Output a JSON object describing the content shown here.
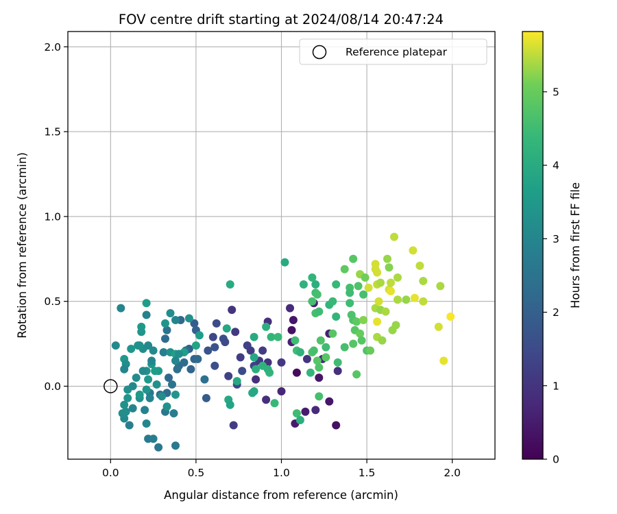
{
  "chart_data": {
    "type": "scatter",
    "title": "FOV centre drift starting at 2024/08/14 20:47:24",
    "xlabel": "Angular distance from reference (arcmin)",
    "ylabel": "Rotation from reference (arcmin)",
    "colorbar_label": "Hours from first FF file",
    "xlim": [
      -0.25,
      2.25
    ],
    "ylim": [
      -0.43,
      2.09
    ],
    "clim": [
      0,
      5.82
    ],
    "xticks": [
      0.0,
      0.5,
      1.0,
      1.5,
      2.0
    ],
    "xtick_labels": [
      "0.0",
      "0.5",
      "1.0",
      "1.5",
      "2.0"
    ],
    "yticks": [
      0.0,
      0.5,
      1.0,
      1.5,
      2.0
    ],
    "ytick_labels": [
      "0.0",
      "0.5",
      "1.0",
      "1.5",
      "2.0"
    ],
    "cticks": [
      0,
      1,
      2,
      3,
      4,
      5
    ],
    "ctick_labels": [
      "0",
      "1",
      "2",
      "3",
      "4",
      "5"
    ],
    "grid": true,
    "legend": {
      "placement": "top-right",
      "label": "Reference platepar"
    },
    "colormap": "viridis",
    "reference_point": {
      "x": 0.0,
      "y": 0.0
    },
    "points": [
      {
        "x": 1.32,
        "y": -0.23,
        "h": 0.3
      },
      {
        "x": 1.08,
        "y": -0.22,
        "h": 0.5
      },
      {
        "x": 1.22,
        "y": 0.05,
        "h": 0.4
      },
      {
        "x": 1.28,
        "y": 0.31,
        "h": 0.6
      },
      {
        "x": 1.24,
        "y": 0.16,
        "h": 0.7
      },
      {
        "x": 1.05,
        "y": 0.46,
        "h": 0.8
      },
      {
        "x": 1.07,
        "y": 0.39,
        "h": 0.4
      },
      {
        "x": 1.09,
        "y": 0.08,
        "h": 0.2
      },
      {
        "x": 0.91,
        "y": -0.08,
        "h": 0.9
      },
      {
        "x": 1.0,
        "y": -0.03,
        "h": 0.7
      },
      {
        "x": 1.14,
        "y": -0.15,
        "h": 0.5
      },
      {
        "x": 1.2,
        "y": -0.14,
        "h": 0.8
      },
      {
        "x": 1.28,
        "y": -0.09,
        "h": 0.4
      },
      {
        "x": 1.33,
        "y": 0.09,
        "h": 0.9
      },
      {
        "x": 1.06,
        "y": 0.33,
        "h": 0.3
      },
      {
        "x": 1.06,
        "y": 0.26,
        "h": 0.6
      },
      {
        "x": 0.92,
        "y": 0.38,
        "h": 0.9
      },
      {
        "x": 1.15,
        "y": 0.16,
        "h": 1.0
      },
      {
        "x": 1.19,
        "y": 0.49,
        "h": 0.6
      },
      {
        "x": 1.0,
        "y": 0.14,
        "h": 1.1
      },
      {
        "x": 0.89,
        "y": 0.21,
        "h": 1.2
      },
      {
        "x": 0.92,
        "y": 0.14,
        "h": 1.0
      },
      {
        "x": 0.84,
        "y": 0.12,
        "h": 1.3
      },
      {
        "x": 0.85,
        "y": 0.04,
        "h": 0.9
      },
      {
        "x": 0.74,
        "y": 0.01,
        "h": 1.4
      },
      {
        "x": 0.76,
        "y": 0.17,
        "h": 1.2
      },
      {
        "x": 0.73,
        "y": 0.32,
        "h": 1.1
      },
      {
        "x": 0.71,
        "y": 0.45,
        "h": 1.0
      },
      {
        "x": 0.8,
        "y": 0.24,
        "h": 1.3
      },
      {
        "x": 0.82,
        "y": 0.21,
        "h": 1.2
      },
      {
        "x": 0.87,
        "y": 0.15,
        "h": 1.1
      },
      {
        "x": 0.72,
        "y": -0.23,
        "h": 1.2
      },
      {
        "x": 0.69,
        "y": 0.06,
        "h": 1.3
      },
      {
        "x": 0.77,
        "y": 0.09,
        "h": 1.5
      },
      {
        "x": 0.6,
        "y": 0.29,
        "h": 1.4
      },
      {
        "x": 0.62,
        "y": 0.37,
        "h": 1.5
      },
      {
        "x": 0.66,
        "y": 0.28,
        "h": 1.6
      },
      {
        "x": 0.67,
        "y": 0.26,
        "h": 1.5
      },
      {
        "x": 0.61,
        "y": 0.23,
        "h": 1.7
      },
      {
        "x": 0.57,
        "y": 0.21,
        "h": 1.7
      },
      {
        "x": 0.61,
        "y": 0.12,
        "h": 1.6
      },
      {
        "x": 0.56,
        "y": -0.07,
        "h": 1.9
      },
      {
        "x": 0.49,
        "y": 0.37,
        "h": 1.9
      },
      {
        "x": 0.5,
        "y": 0.33,
        "h": 2.0
      },
      {
        "x": 0.46,
        "y": 0.22,
        "h": 2.0
      },
      {
        "x": 0.49,
        "y": 0.16,
        "h": 2.1
      },
      {
        "x": 0.51,
        "y": 0.16,
        "h": 2.2
      },
      {
        "x": 0.43,
        "y": 0.14,
        "h": 2.3
      },
      {
        "x": 0.4,
        "y": 0.12,
        "h": 2.3
      },
      {
        "x": 0.39,
        "y": 0.1,
        "h": 2.4
      },
      {
        "x": 0.34,
        "y": 0.05,
        "h": 2.2
      },
      {
        "x": 0.36,
        "y": 0.01,
        "h": 2.5
      },
      {
        "x": 0.29,
        "y": -0.05,
        "h": 2.4
      },
      {
        "x": 0.33,
        "y": -0.04,
        "h": 2.3
      },
      {
        "x": 0.23,
        "y": -0.04,
        "h": 2.6
      },
      {
        "x": 0.47,
        "y": 0.1,
        "h": 2.1
      },
      {
        "x": 0.44,
        "y": 0.21,
        "h": 2.4
      },
      {
        "x": 0.55,
        "y": 0.04,
        "h": 2.4
      },
      {
        "x": 0.41,
        "y": 0.39,
        "h": 2.2
      },
      {
        "x": 0.32,
        "y": 0.28,
        "h": 2.3
      },
      {
        "x": 0.33,
        "y": 0.33,
        "h": 2.5
      },
      {
        "x": 0.32,
        "y": -0.15,
        "h": 2.6
      },
      {
        "x": 0.22,
        "y": -0.31,
        "h": 2.7
      },
      {
        "x": 0.25,
        "y": -0.31,
        "h": 2.8
      },
      {
        "x": 0.28,
        "y": -0.36,
        "h": 2.6
      },
      {
        "x": 0.38,
        "y": -0.35,
        "h": 2.7
      },
      {
        "x": 0.37,
        "y": -0.16,
        "h": 2.8
      },
      {
        "x": 0.21,
        "y": -0.22,
        "h": 3.0
      },
      {
        "x": 0.2,
        "y": -0.14,
        "h": 2.9
      },
      {
        "x": 0.13,
        "y": -0.13,
        "h": 3.0
      },
      {
        "x": 0.08,
        "y": -0.19,
        "h": 3.1
      },
      {
        "x": 0.09,
        "y": -0.15,
        "h": 3.2
      },
      {
        "x": 0.11,
        "y": -0.23,
        "h": 2.8
      },
      {
        "x": 0.07,
        "y": -0.16,
        "h": 3.2
      },
      {
        "x": 0.08,
        "y": -0.11,
        "h": 3.3
      },
      {
        "x": 0.1,
        "y": -0.07,
        "h": 3.4
      },
      {
        "x": 0.17,
        "y": -0.07,
        "h": 3.3
      },
      {
        "x": 0.17,
        "y": -0.05,
        "h": 3.5
      },
      {
        "x": 0.21,
        "y": -0.02,
        "h": 3.4
      },
      {
        "x": 0.23,
        "y": -0.07,
        "h": 2.9
      },
      {
        "x": 0.27,
        "y": 0.01,
        "h": 3.3
      },
      {
        "x": 0.3,
        "y": -0.06,
        "h": 3.2
      },
      {
        "x": 0.38,
        "y": -0.05,
        "h": 3.4
      },
      {
        "x": 0.33,
        "y": -0.12,
        "h": 3.3
      },
      {
        "x": 0.28,
        "y": 0.09,
        "h": 3.5
      },
      {
        "x": 0.26,
        "y": 0.09,
        "h": 3.6
      },
      {
        "x": 0.21,
        "y": 0.09,
        "h": 3.3
      },
      {
        "x": 0.19,
        "y": 0.09,
        "h": 3.1
      },
      {
        "x": 0.22,
        "y": 0.04,
        "h": 3.5
      },
      {
        "x": 0.24,
        "y": 0.13,
        "h": 3.4
      },
      {
        "x": 0.24,
        "y": 0.15,
        "h": 3.0
      },
      {
        "x": 0.15,
        "y": 0.05,
        "h": 3.2
      },
      {
        "x": 0.19,
        "y": 0.22,
        "h": 3.2
      },
      {
        "x": 0.17,
        "y": 0.24,
        "h": 3.3
      },
      {
        "x": 0.18,
        "y": 0.32,
        "h": 3.4
      },
      {
        "x": 0.21,
        "y": 0.42,
        "h": 2.9
      },
      {
        "x": 0.21,
        "y": 0.49,
        "h": 3.6
      },
      {
        "x": 0.18,
        "y": 0.35,
        "h": 3.5
      },
      {
        "x": 0.16,
        "y": 0.24,
        "h": 3.3
      },
      {
        "x": 0.22,
        "y": 0.24,
        "h": 3.1
      },
      {
        "x": 0.12,
        "y": 0.22,
        "h": 3.4
      },
      {
        "x": 0.08,
        "y": 0.16,
        "h": 3.5
      },
      {
        "x": 0.09,
        "y": 0.13,
        "h": 3.2
      },
      {
        "x": 0.08,
        "y": 0.1,
        "h": 3.0
      },
      {
        "x": 0.03,
        "y": 0.24,
        "h": 3.1
      },
      {
        "x": 0.06,
        "y": 0.46,
        "h": 3.0
      },
      {
        "x": 0.1,
        "y": -0.02,
        "h": 3.3
      },
      {
        "x": 0.13,
        "y": 0.0,
        "h": 3.1
      },
      {
        "x": 0.31,
        "y": 0.2,
        "h": 2.8
      },
      {
        "x": 0.35,
        "y": 0.2,
        "h": 3.3
      },
      {
        "x": 0.25,
        "y": 0.21,
        "h": 3.1
      },
      {
        "x": 0.35,
        "y": 0.43,
        "h": 3.2
      },
      {
        "x": 0.32,
        "y": 0.37,
        "h": 3.4
      },
      {
        "x": 0.38,
        "y": 0.39,
        "h": 3.0
      },
      {
        "x": 0.46,
        "y": 0.4,
        "h": 3.3
      },
      {
        "x": 0.43,
        "y": 0.2,
        "h": 3.7
      },
      {
        "x": 0.38,
        "y": 0.19,
        "h": 3.7
      },
      {
        "x": 0.4,
        "y": 0.19,
        "h": 3.2
      },
      {
        "x": 0.5,
        "y": 0.24,
        "h": 3.8
      },
      {
        "x": 0.38,
        "y": 0.15,
        "h": 3.0
      },
      {
        "x": 0.52,
        "y": 0.3,
        "h": 3.6
      },
      {
        "x": 0.7,
        "y": 0.6,
        "h": 4.0
      },
      {
        "x": 0.68,
        "y": 0.34,
        "h": 3.9
      },
      {
        "x": 0.69,
        "y": -0.08,
        "h": 3.9
      },
      {
        "x": 0.7,
        "y": -0.11,
        "h": 3.8
      },
      {
        "x": 0.74,
        "y": 0.03,
        "h": 3.9
      },
      {
        "x": 0.83,
        "y": -0.04,
        "h": 4.0
      },
      {
        "x": 0.84,
        "y": -0.03,
        "h": 3.9
      },
      {
        "x": 0.84,
        "y": 0.29,
        "h": 4.0
      },
      {
        "x": 0.84,
        "y": 0.17,
        "h": 3.9
      },
      {
        "x": 0.85,
        "y": 0.1,
        "h": 4.1
      },
      {
        "x": 0.89,
        "y": 0.12,
        "h": 4.2
      },
      {
        "x": 0.93,
        "y": 0.08,
        "h": 4.3
      },
      {
        "x": 0.92,
        "y": 0.1,
        "h": 4.2
      },
      {
        "x": 0.91,
        "y": 0.35,
        "h": 4.1
      },
      {
        "x": 0.94,
        "y": 0.29,
        "h": 4.3
      },
      {
        "x": 0.98,
        "y": 0.29,
        "h": 4.4
      },
      {
        "x": 0.96,
        "y": -0.1,
        "h": 4.4
      },
      {
        "x": 1.02,
        "y": 0.73,
        "h": 4.0
      },
      {
        "x": 1.08,
        "y": 0.27,
        "h": 4.5
      },
      {
        "x": 1.09,
        "y": 0.21,
        "h": 4.5
      },
      {
        "x": 1.11,
        "y": 0.2,
        "h": 4.2
      },
      {
        "x": 1.09,
        "y": -0.16,
        "h": 4.5
      },
      {
        "x": 1.11,
        "y": -0.2,
        "h": 4.1
      },
      {
        "x": 1.13,
        "y": 0.6,
        "h": 4.2
      },
      {
        "x": 1.18,
        "y": 0.64,
        "h": 4.3
      },
      {
        "x": 1.2,
        "y": 0.6,
        "h": 4.1
      },
      {
        "x": 1.2,
        "y": 0.55,
        "h": 4.5
      },
      {
        "x": 1.21,
        "y": 0.54,
        "h": 4.6
      },
      {
        "x": 1.18,
        "y": 0.5,
        "h": 4.6
      },
      {
        "x": 1.2,
        "y": 0.43,
        "h": 4.6
      },
      {
        "x": 1.22,
        "y": 0.44,
        "h": 4.5
      },
      {
        "x": 1.17,
        "y": 0.08,
        "h": 4.3
      },
      {
        "x": 1.18,
        "y": 0.2,
        "h": 4.7
      },
      {
        "x": 1.19,
        "y": 0.21,
        "h": 4.6
      },
      {
        "x": 1.21,
        "y": 0.15,
        "h": 4.8
      },
      {
        "x": 1.22,
        "y": 0.11,
        "h": 4.7
      },
      {
        "x": 1.22,
        "y": -0.06,
        "h": 4.6
      },
      {
        "x": 1.23,
        "y": 0.27,
        "h": 4.7
      },
      {
        "x": 1.26,
        "y": 0.23,
        "h": 4.5
      },
      {
        "x": 1.26,
        "y": 0.17,
        "h": 4.8
      },
      {
        "x": 1.28,
        "y": 0.48,
        "h": 4.3
      },
      {
        "x": 1.3,
        "y": 0.31,
        "h": 4.8
      },
      {
        "x": 1.3,
        "y": 0.5,
        "h": 4.4
      },
      {
        "x": 1.32,
        "y": 0.6,
        "h": 4.4
      },
      {
        "x": 1.32,
        "y": 0.41,
        "h": 4.3
      },
      {
        "x": 1.33,
        "y": 0.14,
        "h": 4.5
      },
      {
        "x": 1.37,
        "y": 0.69,
        "h": 4.9
      },
      {
        "x": 1.37,
        "y": 0.23,
        "h": 4.6
      },
      {
        "x": 1.4,
        "y": 0.58,
        "h": 4.6
      },
      {
        "x": 1.4,
        "y": 0.55,
        "h": 4.5
      },
      {
        "x": 1.4,
        "y": 0.49,
        "h": 4.5
      },
      {
        "x": 1.41,
        "y": 0.42,
        "h": 4.7
      },
      {
        "x": 1.42,
        "y": 0.39,
        "h": 4.7
      },
      {
        "x": 1.42,
        "y": 0.75,
        "h": 4.8
      },
      {
        "x": 1.42,
        "y": 0.25,
        "h": 4.8
      },
      {
        "x": 1.43,
        "y": 0.33,
        "h": 4.8
      },
      {
        "x": 1.44,
        "y": 0.07,
        "h": 4.8
      },
      {
        "x": 1.44,
        "y": 0.38,
        "h": 4.9
      },
      {
        "x": 1.45,
        "y": 0.59,
        "h": 4.7
      },
      {
        "x": 1.46,
        "y": 0.66,
        "h": 5.3
      },
      {
        "x": 1.46,
        "y": 0.31,
        "h": 5.0
      },
      {
        "x": 1.47,
        "y": 0.27,
        "h": 4.8
      },
      {
        "x": 1.48,
        "y": 0.54,
        "h": 4.6
      },
      {
        "x": 1.48,
        "y": 0.39,
        "h": 5.2
      },
      {
        "x": 1.49,
        "y": 0.64,
        "h": 5.1
      },
      {
        "x": 1.5,
        "y": 0.21,
        "h": 4.7
      },
      {
        "x": 1.51,
        "y": 0.58,
        "h": 5.6
      },
      {
        "x": 1.52,
        "y": 0.21,
        "h": 5.0
      },
      {
        "x": 1.55,
        "y": 0.46,
        "h": 5.4
      },
      {
        "x": 1.55,
        "y": 0.69,
        "h": 5.6
      },
      {
        "x": 1.55,
        "y": 0.72,
        "h": 5.6
      },
      {
        "x": 1.56,
        "y": 0.6,
        "h": 5.5
      },
      {
        "x": 1.56,
        "y": 0.67,
        "h": 5.6
      },
      {
        "x": 1.56,
        "y": 0.38,
        "h": 5.7
      },
      {
        "x": 1.56,
        "y": 0.29,
        "h": 5.4
      },
      {
        "x": 1.57,
        "y": 0.5,
        "h": 5.6
      },
      {
        "x": 1.58,
        "y": 0.45,
        "h": 5.3
      },
      {
        "x": 1.58,
        "y": 0.61,
        "h": 5.4
      },
      {
        "x": 1.59,
        "y": 0.27,
        "h": 5.3
      },
      {
        "x": 1.61,
        "y": 0.44,
        "h": 5.4
      },
      {
        "x": 1.62,
        "y": 0.75,
        "h": 5.3
      },
      {
        "x": 1.63,
        "y": 0.7,
        "h": 5.2
      },
      {
        "x": 1.63,
        "y": 0.57,
        "h": 5.6
      },
      {
        "x": 1.64,
        "y": 0.56,
        "h": 5.7
      },
      {
        "x": 1.64,
        "y": 0.61,
        "h": 5.5
      },
      {
        "x": 1.65,
        "y": 0.33,
        "h": 5.3
      },
      {
        "x": 1.66,
        "y": 0.88,
        "h": 5.5
      },
      {
        "x": 1.67,
        "y": 0.36,
        "h": 5.3
      },
      {
        "x": 1.68,
        "y": 0.51,
        "h": 5.4
      },
      {
        "x": 1.68,
        "y": 0.64,
        "h": 5.4
      },
      {
        "x": 1.73,
        "y": 0.51,
        "h": 5.3
      },
      {
        "x": 1.77,
        "y": 0.8,
        "h": 5.6
      },
      {
        "x": 1.78,
        "y": 0.52,
        "h": 5.7
      },
      {
        "x": 1.81,
        "y": 0.71,
        "h": 5.5
      },
      {
        "x": 1.83,
        "y": 0.62,
        "h": 5.4
      },
      {
        "x": 1.83,
        "y": 0.5,
        "h": 5.5
      },
      {
        "x": 1.92,
        "y": 0.35,
        "h": 5.6
      },
      {
        "x": 1.93,
        "y": 0.59,
        "h": 5.4
      },
      {
        "x": 1.95,
        "y": 0.15,
        "h": 5.7
      },
      {
        "x": 1.99,
        "y": 0.41,
        "h": 5.8
      }
    ]
  }
}
